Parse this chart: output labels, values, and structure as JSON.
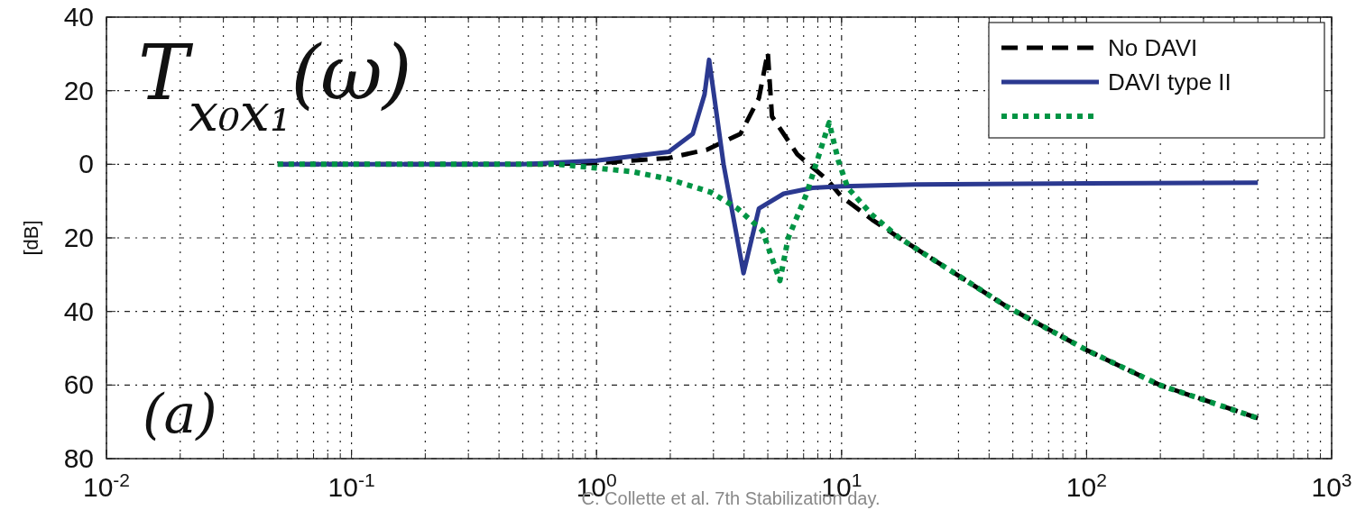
{
  "chart_data": {
    "type": "line",
    "ylabel": "[dB]",
    "annotations": [
      "T$_{x₀x₁}$(ω)",
      "(a)",
      "C. Collette et al. 7th Stabilization day."
    ],
    "log": "x",
    "xlim": [
      0.01,
      1000
    ],
    "ylim": [
      -80,
      40
    ],
    "xticks": [
      {
        "value": 0.01,
        "label": "10$^{-2}$"
      },
      {
        "value": 0.02,
        "label": null
      },
      {
        "value": 0.03,
        "label": null
      },
      {
        "value": 0.04,
        "label": null
      },
      {
        "value": 0.05,
        "label": null
      },
      {
        "value": 0.06,
        "label": null
      },
      {
        "value": 0.07,
        "label": null
      },
      {
        "value": 0.08,
        "label": null
      },
      {
        "value": 0.09,
        "label": null
      },
      {
        "value": 0.1,
        "label": "10$^{-1}$"
      },
      {
        "value": 0.2,
        "label": null
      },
      {
        "value": 0.3,
        "label": null
      },
      {
        "value": 0.4,
        "label": null
      },
      {
        "value": 0.5,
        "label": null
      },
      {
        "value": 0.6,
        "label": null
      },
      {
        "value": 0.7,
        "label": null
      },
      {
        "value": 0.8,
        "label": null
      },
      {
        "value": 0.9,
        "label": null
      },
      {
        "value": 1,
        "label": "10$^{0}$"
      },
      {
        "value": 2,
        "label": null
      },
      {
        "value": 3,
        "label": null
      },
      {
        "value": 4,
        "label": null
      },
      {
        "value": 5,
        "label": null
      },
      {
        "value": 6,
        "label": null
      },
      {
        "value": 7,
        "label": null
      },
      {
        "value": 8,
        "label": null
      },
      {
        "value": 9,
        "label": null
      },
      {
        "value": 10,
        "label": "10$^{1}$"
      },
      {
        "value": 20,
        "label": null
      },
      {
        "value": 30,
        "label": null
      },
      {
        "value": 40,
        "label": null
      },
      {
        "value": 50,
        "label": null
      },
      {
        "value": 60,
        "label": null
      },
      {
        "value": 70,
        "label": null
      },
      {
        "value": 80,
        "label": null
      },
      {
        "value": 90,
        "label": null
      },
      {
        "value": 100,
        "label": "10$^{2}$"
      },
      {
        "value": 200,
        "label": null
      },
      {
        "value": 300,
        "label": null
      },
      {
        "value": 400,
        "label": null
      },
      {
        "value": 500,
        "label": null
      },
      {
        "value": 600,
        "label": null
      },
      {
        "value": 700,
        "label": null
      },
      {
        "value": 800,
        "label": null
      },
      {
        "value": 900,
        "label": null
      },
      {
        "value": 1000,
        "label": "10$^{3}$"
      }
    ],
    "yticks": [
      40,
      20,
      0,
      {
        "value": -20,
        "label": "20"
      },
      {
        "value": -40,
        "label": "40"
      },
      {
        "value": -60,
        "label": "60"
      },
      {
        "value": -80,
        "label": "80"
      }
    ],
    "grid": true,
    "legend": "top right",
    "marker": "none",
    "series": [
      {
        "name": "No DAVI",
        "color": "#000000",
        "line_style": "dashed",
        "x": [
          0.05,
          0.5,
          1,
          1.97,
          2.83,
          3.87,
          4.6,
          5.0,
          5.2,
          6.6,
          8.8,
          10,
          13.3,
          17.2,
          28,
          47,
          100,
          199,
          500
        ],
        "values": [
          0,
          0,
          0.3,
          1.7,
          4,
          8.3,
          18,
          30.4,
          13,
          2.7,
          -4.4,
          -8.8,
          -15,
          -20,
          -29,
          -38.6,
          -50.5,
          -60,
          -69
        ]
      },
      {
        "name": "DAVI type II",
        "color": "#2b3990",
        "line_style": "solid",
        "x": [
          0.05,
          0.5,
          1,
          1.97,
          2.47,
          2.76,
          2.88,
          3.3,
          3.7,
          3.98,
          4.6,
          5.8,
          7.6,
          10,
          20,
          100,
          500
        ],
        "values": [
          0,
          0,
          1,
          3.4,
          8.3,
          19,
          28.4,
          0,
          -18,
          -29.6,
          -12,
          -8,
          -6.4,
          -6,
          -5.5,
          -5.2,
          -5
        ]
      },
      {
        "color": "#009444",
        "line_style": "dotted",
        "x": [
          0.05,
          0.7,
          1.4,
          1.97,
          2.93,
          3.76,
          4.75,
          5.6,
          6.06,
          7.2,
          8.1,
          8.9,
          9.7,
          10.6,
          13.3,
          17.2,
          28,
          47,
          100,
          199,
          500
        ],
        "values": [
          0,
          0,
          -2,
          -4,
          -7.6,
          -12,
          -18,
          -31.6,
          -20,
          -8,
          2.7,
          11.3,
          1,
          -6.4,
          -13.7,
          -20,
          -29,
          -38.6,
          -50.5,
          -60,
          -69
        ]
      }
    ]
  }
}
